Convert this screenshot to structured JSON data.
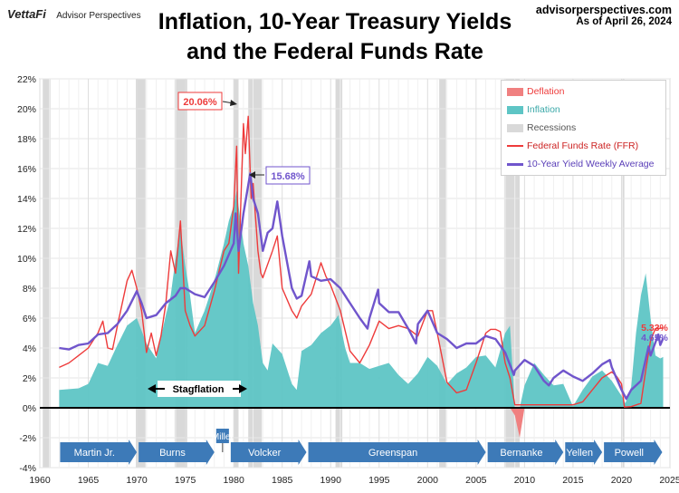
{
  "header": {
    "logo": "VettaFi",
    "logo_sub": "Advisor Perspectives",
    "site": "advisorperspectives.com",
    "as_of": "As of April 26, 2024",
    "title_line1": "Inflation, 10-Year Treasury Yields",
    "title_line2": "and the Federal Funds Rate"
  },
  "colors": {
    "inflation": "#5ec5c5",
    "deflation": "#f08080",
    "recession": "#d9d9d9",
    "ffr": "#ee3b3b",
    "yield": "#7055cc",
    "era_arrow": "#3d7ab8"
  },
  "legend": {
    "deflation": "Deflation",
    "inflation": "Inflation",
    "recessions": "Recessions",
    "ffr": "Federal Funds Rate (FFR)",
    "yield": "10-Year Yield Weekly Average"
  },
  "annotations": {
    "ffr_peak": "20.06%",
    "yield_peak": "15.68%",
    "ffr_latest": "5.33%",
    "yield_latest": "4.65%",
    "stagflation": "Stagflation"
  },
  "chart_data": {
    "type": "line",
    "xlim": [
      1960,
      2025
    ],
    "ylim": [
      -4,
      22
    ],
    "x_ticks": [
      "1960",
      "1965",
      "1970",
      "1975",
      "1980",
      "1985",
      "1990",
      "1995",
      "2000",
      "2005",
      "2010",
      "2015",
      "2020",
      "2025"
    ],
    "y_ticks": [
      "22%",
      "20%",
      "18%",
      "16%",
      "14%",
      "12%",
      "10%",
      "8%",
      "6%",
      "4%",
      "2%",
      "0%",
      "-2%",
      "-4%"
    ],
    "grid": true,
    "legend_position": "top-right",
    "recessions": [
      [
        1960.3,
        1961.1
      ],
      [
        1969.9,
        1970.9
      ],
      [
        1973.9,
        1975.2
      ],
      [
        1980.0,
        1980.5
      ],
      [
        1981.5,
        1982.9
      ],
      [
        1990.5,
        1991.2
      ],
      [
        2001.2,
        2001.9
      ],
      [
        2007.9,
        2009.5
      ],
      [
        2020.1,
        2020.3
      ]
    ],
    "eras": [
      {
        "name": "Martin Jr.",
        "start": 1962.0,
        "end": 1970.1
      },
      {
        "name": "Burns",
        "start": 1970.1,
        "end": 1978.1
      },
      {
        "name": "Miller",
        "start": 1978.1,
        "end": 1979.6
      },
      {
        "name": "Volcker",
        "start": 1979.6,
        "end": 1987.6
      },
      {
        "name": "Greenspan",
        "start": 1987.6,
        "end": 2006.1
      },
      {
        "name": "Bernanke",
        "start": 2006.1,
        "end": 2014.1
      },
      {
        "name": "Yellen",
        "start": 2014.1,
        "end": 2018.1
      },
      {
        "name": "Powell",
        "start": 2018.1,
        "end": 2024.3
      }
    ],
    "series": [
      {
        "name": "Inflation",
        "kind": "area",
        "x": [
          1962.0,
          1964.0,
          1965.0,
          1966.0,
          1967.0,
          1968.0,
          1969.0,
          1970.0,
          1971.0,
          1972.0,
          1973.0,
          1973.5,
          1974.0,
          1974.5,
          1975.0,
          1975.5,
          1976.0,
          1977.0,
          1978.0,
          1979.0,
          1979.5,
          1980.0,
          1980.3,
          1980.6,
          1981.0,
          1981.5,
          1982.0,
          1982.5,
          1983.0,
          1983.5,
          1984.0,
          1985.0,
          1986.0,
          1986.5,
          1987.0,
          1988.0,
          1989.0,
          1990.0,
          1990.8,
          1991.5,
          1992.0,
          1993.0,
          1994.0,
          1995.0,
          1996.0,
          1997.0,
          1998.0,
          1999.0,
          2000.0,
          2001.0,
          2002.0,
          2003.0,
          2004.0,
          2005.0,
          2006.0,
          2007.0,
          2008.0,
          2008.5,
          2009.0,
          2009.5,
          2010.0,
          2011.0,
          2012.0,
          2013.0,
          2014.0,
          2015.0,
          2016.0,
          2017.0,
          2018.0,
          2019.0,
          2020.0,
          2020.4,
          2021.0,
          2021.5,
          2022.0,
          2022.5,
          2023.0,
          2023.5,
          2024.0,
          2024.3
        ],
        "y": [
          1.2,
          1.3,
          1.6,
          3.0,
          2.8,
          4.2,
          5.5,
          6.0,
          4.3,
          3.3,
          6.2,
          7.5,
          10.0,
          12.0,
          9.5,
          7.5,
          5.0,
          6.5,
          8.5,
          11.0,
          12.5,
          13.5,
          14.5,
          13.0,
          11.0,
          9.5,
          7.0,
          5.5,
          3.0,
          2.5,
          4.3,
          3.6,
          1.6,
          1.2,
          3.8,
          4.2,
          5.0,
          5.5,
          6.2,
          4.0,
          3.0,
          3.0,
          2.6,
          2.8,
          3.0,
          2.2,
          1.6,
          2.3,
          3.4,
          2.8,
          1.6,
          2.3,
          2.7,
          3.4,
          3.5,
          2.7,
          5.0,
          5.5,
          -0.5,
          -2.0,
          1.5,
          3.0,
          2.2,
          1.5,
          1.6,
          0.1,
          1.2,
          2.1,
          2.5,
          1.8,
          0.8,
          0.3,
          1.4,
          5.0,
          7.5,
          9.0,
          6.0,
          3.5,
          3.3,
          3.4
        ]
      },
      {
        "name": "Federal Funds Rate (FFR)",
        "x": [
          1962.0,
          1963.0,
          1964.0,
          1965.0,
          1966.0,
          1966.5,
          1967.0,
          1967.5,
          1968.0,
          1969.0,
          1969.5,
          1970.0,
          1970.5,
          1971.0,
          1971.5,
          1972.0,
          1972.5,
          1973.0,
          1973.5,
          1974.0,
          1974.5,
          1975.0,
          1975.5,
          1976.0,
          1977.0,
          1978.0,
          1979.0,
          1979.5,
          1980.0,
          1980.3,
          1980.5,
          1980.8,
          1981.0,
          1981.2,
          1981.5,
          1981.8,
          1982.0,
          1982.5,
          1982.8,
          1983.0,
          1984.0,
          1984.5,
          1985.0,
          1986.0,
          1986.5,
          1987.0,
          1988.0,
          1989.0,
          1989.5,
          1990.0,
          1991.0,
          1992.0,
          1993.0,
          1994.0,
          1995.0,
          1996.0,
          1997.0,
          1998.0,
          1999.0,
          2000.0,
          2000.5,
          2001.0,
          2002.0,
          2003.0,
          2004.0,
          2005.0,
          2006.0,
          2006.5,
          2007.0,
          2007.5,
          2008.0,
          2008.5,
          2009.0,
          2010.0,
          2015.0,
          2016.0,
          2017.0,
          2018.0,
          2019.0,
          2019.5,
          2020.0,
          2020.3,
          2021.0,
          2022.0,
          2022.5,
          2023.0,
          2023.5,
          2024.3
        ],
        "y": [
          2.7,
          3.0,
          3.5,
          4.0,
          5.0,
          5.8,
          4.0,
          3.9,
          5.5,
          8.5,
          9.2,
          8.0,
          6.5,
          3.7,
          5.0,
          3.5,
          4.8,
          7.0,
          10.5,
          9.0,
          12.5,
          6.5,
          5.5,
          4.8,
          5.5,
          7.8,
          10.5,
          11.0,
          13.5,
          17.5,
          9.0,
          15.0,
          19.0,
          17.0,
          19.5,
          14.0,
          15.0,
          10.5,
          9.0,
          8.7,
          10.5,
          11.5,
          8.0,
          6.5,
          6.0,
          6.8,
          7.6,
          9.7,
          8.8,
          8.2,
          6.5,
          3.8,
          3.0,
          4.2,
          5.8,
          5.3,
          5.5,
          5.3,
          4.8,
          6.5,
          6.5,
          5.0,
          1.7,
          1.0,
          1.2,
          3.0,
          5.0,
          5.25,
          5.25,
          5.1,
          3.0,
          2.0,
          0.2,
          0.2,
          0.2,
          0.4,
          1.2,
          2.0,
          2.4,
          2.1,
          1.6,
          0.05,
          0.08,
          0.3,
          2.5,
          4.5,
          5.3,
          5.33
        ]
      },
      {
        "name": "10-Year Yield Weekly Average",
        "x": [
          1962.0,
          1963.0,
          1964.0,
          1965.0,
          1966.0,
          1967.0,
          1968.0,
          1969.0,
          1970.0,
          1970.5,
          1971.0,
          1972.0,
          1973.0,
          1974.0,
          1974.5,
          1975.0,
          1976.0,
          1977.0,
          1978.0,
          1979.0,
          1980.0,
          1980.2,
          1980.5,
          1981.0,
          1981.7,
          1982.0,
          1982.5,
          1983.0,
          1983.5,
          1984.0,
          1984.5,
          1985.0,
          1986.0,
          1986.5,
          1987.0,
          1987.8,
          1988.0,
          1989.0,
          1990.0,
          1991.0,
          1992.0,
          1993.0,
          1993.8,
          1994.0,
          1994.9,
          1995.0,
          1996.0,
          1997.0,
          1998.0,
          1998.8,
          1999.0,
          2000.0,
          2001.0,
          2002.0,
          2003.0,
          2004.0,
          2005.0,
          2006.0,
          2007.0,
          2008.0,
          2008.9,
          2009.0,
          2010.0,
          2011.0,
          2012.0,
          2012.5,
          2013.0,
          2014.0,
          2015.0,
          2016.0,
          2017.0,
          2018.0,
          2018.8,
          2019.0,
          2020.0,
          2020.5,
          2021.0,
          2022.0,
          2022.8,
          2023.0,
          2023.8,
          2024.0,
          2024.3
        ],
        "y": [
          4.0,
          3.9,
          4.2,
          4.3,
          4.9,
          5.0,
          5.6,
          6.5,
          7.8,
          7.0,
          6.0,
          6.2,
          7.0,
          7.5,
          8.0,
          8.0,
          7.6,
          7.4,
          8.4,
          9.5,
          11.0,
          13.0,
          10.5,
          13.0,
          15.68,
          14.0,
          13.0,
          10.5,
          11.7,
          12.0,
          13.8,
          11.5,
          8.0,
          7.3,
          7.5,
          9.8,
          8.8,
          8.5,
          8.6,
          8.0,
          7.0,
          6.0,
          5.3,
          6.0,
          7.9,
          7.0,
          6.4,
          6.4,
          5.3,
          4.3,
          5.6,
          6.5,
          5.0,
          4.6,
          4.0,
          4.3,
          4.3,
          4.8,
          4.6,
          3.7,
          2.2,
          2.5,
          3.2,
          2.8,
          1.8,
          1.5,
          2.0,
          2.5,
          2.1,
          1.8,
          2.3,
          2.9,
          3.2,
          2.7,
          1.2,
          0.6,
          1.2,
          1.8,
          4.1,
          3.5,
          4.9,
          4.2,
          4.65
        ]
      }
    ]
  }
}
